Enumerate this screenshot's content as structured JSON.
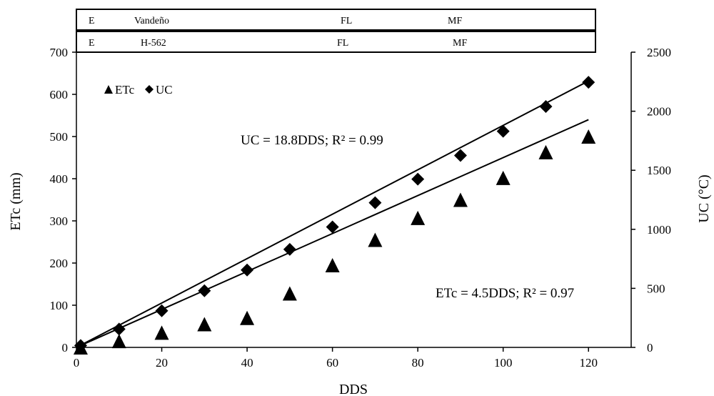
{
  "chart_data": {
    "type": "scatter",
    "xlabel": "DDS",
    "ylabel_left": "ETc (mm)",
    "ylabel_right": "UC (°C)",
    "xlim": [
      0,
      130
    ],
    "x_ticks": [
      "0",
      "20",
      "40",
      "60",
      "80",
      "100",
      "120"
    ],
    "ylim_left": [
      0,
      700
    ],
    "y_ticks_left": [
      "0",
      "100",
      "200",
      "300",
      "400",
      "500",
      "600",
      "700"
    ],
    "ylim_right": [
      0,
      2500
    ],
    "y_ticks_right": [
      "0",
      "500",
      "1000",
      "1500",
      "2000",
      "2500"
    ],
    "legend": {
      "placement": "top-left",
      "entries": [
        "ETc",
        "UC"
      ]
    },
    "series": [
      {
        "name": "ETc",
        "axis": "left",
        "marker": "triangle",
        "x": [
          1,
          10,
          20,
          30,
          40,
          50,
          60,
          70,
          80,
          90,
          100,
          110,
          120
        ],
        "y": [
          0,
          15,
          35,
          55,
          70,
          128,
          195,
          255,
          307,
          350,
          402,
          463,
          500
        ]
      },
      {
        "name": "UC",
        "axis": "right",
        "marker": "diamond",
        "x": [
          1,
          10,
          20,
          30,
          40,
          50,
          60,
          70,
          80,
          90,
          100,
          110,
          120
        ],
        "y": [
          16,
          155,
          310,
          480,
          655,
          830,
          1020,
          1225,
          1425,
          1625,
          1830,
          2040,
          2245
        ]
      }
    ],
    "trendlines": [
      {
        "series": "UC",
        "axis": "right",
        "slope": 18.8,
        "x_range": [
          1,
          120
        ],
        "label": "UC = 18.8DDS; R² = 0.99"
      },
      {
        "series": "ETc",
        "axis": "left",
        "slope": 4.5,
        "x_range": [
          1,
          120
        ],
        "label": "ETc = 4.5DDS; R² = 0.97"
      }
    ],
    "phenology_rows": [
      {
        "cells": [
          "E",
          "Vandeño",
          "FL",
          "MF"
        ]
      },
      {
        "cells": [
          "E",
          "H-562",
          "FL",
          "MF"
        ]
      }
    ]
  }
}
